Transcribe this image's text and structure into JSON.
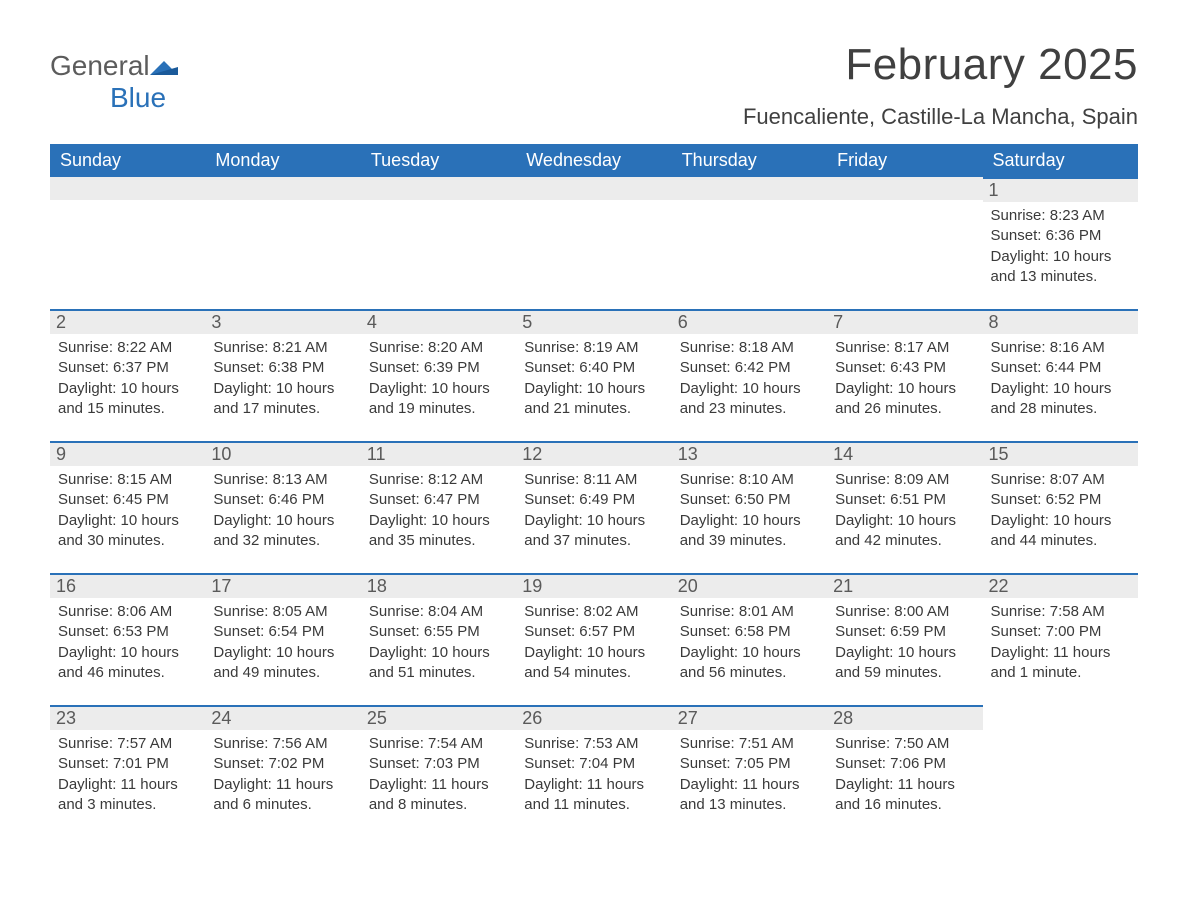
{
  "logo": {
    "text1": "General",
    "text2": "Blue"
  },
  "title": "February 2025",
  "location": "Fuencaliente, Castille-La Mancha, Spain",
  "colors": {
    "header_bg": "#2a71b8",
    "header_text": "#ffffff",
    "daybar_bg": "#ececec",
    "daybar_border": "#2a71b8",
    "body_text": "#3a3a3a",
    "logo_gray": "#5c5c5c",
    "logo_blue": "#2a71b8"
  },
  "weekdays": [
    "Sunday",
    "Monday",
    "Tuesday",
    "Wednesday",
    "Thursday",
    "Friday",
    "Saturday"
  ],
  "weeks": [
    [
      {
        "day": "",
        "sunrise": "",
        "sunset": "",
        "daylight": ""
      },
      {
        "day": "",
        "sunrise": "",
        "sunset": "",
        "daylight": ""
      },
      {
        "day": "",
        "sunrise": "",
        "sunset": "",
        "daylight": ""
      },
      {
        "day": "",
        "sunrise": "",
        "sunset": "",
        "daylight": ""
      },
      {
        "day": "",
        "sunrise": "",
        "sunset": "",
        "daylight": ""
      },
      {
        "day": "",
        "sunrise": "",
        "sunset": "",
        "daylight": ""
      },
      {
        "day": "1",
        "sunrise": "Sunrise: 8:23 AM",
        "sunset": "Sunset: 6:36 PM",
        "daylight": "Daylight: 10 hours and 13 minutes."
      }
    ],
    [
      {
        "day": "2",
        "sunrise": "Sunrise: 8:22 AM",
        "sunset": "Sunset: 6:37 PM",
        "daylight": "Daylight: 10 hours and 15 minutes."
      },
      {
        "day": "3",
        "sunrise": "Sunrise: 8:21 AM",
        "sunset": "Sunset: 6:38 PM",
        "daylight": "Daylight: 10 hours and 17 minutes."
      },
      {
        "day": "4",
        "sunrise": "Sunrise: 8:20 AM",
        "sunset": "Sunset: 6:39 PM",
        "daylight": "Daylight: 10 hours and 19 minutes."
      },
      {
        "day": "5",
        "sunrise": "Sunrise: 8:19 AM",
        "sunset": "Sunset: 6:40 PM",
        "daylight": "Daylight: 10 hours and 21 minutes."
      },
      {
        "day": "6",
        "sunrise": "Sunrise: 8:18 AM",
        "sunset": "Sunset: 6:42 PM",
        "daylight": "Daylight: 10 hours and 23 minutes."
      },
      {
        "day": "7",
        "sunrise": "Sunrise: 8:17 AM",
        "sunset": "Sunset: 6:43 PM",
        "daylight": "Daylight: 10 hours and 26 minutes."
      },
      {
        "day": "8",
        "sunrise": "Sunrise: 8:16 AM",
        "sunset": "Sunset: 6:44 PM",
        "daylight": "Daylight: 10 hours and 28 minutes."
      }
    ],
    [
      {
        "day": "9",
        "sunrise": "Sunrise: 8:15 AM",
        "sunset": "Sunset: 6:45 PM",
        "daylight": "Daylight: 10 hours and 30 minutes."
      },
      {
        "day": "10",
        "sunrise": "Sunrise: 8:13 AM",
        "sunset": "Sunset: 6:46 PM",
        "daylight": "Daylight: 10 hours and 32 minutes."
      },
      {
        "day": "11",
        "sunrise": "Sunrise: 8:12 AM",
        "sunset": "Sunset: 6:47 PM",
        "daylight": "Daylight: 10 hours and 35 minutes."
      },
      {
        "day": "12",
        "sunrise": "Sunrise: 8:11 AM",
        "sunset": "Sunset: 6:49 PM",
        "daylight": "Daylight: 10 hours and 37 minutes."
      },
      {
        "day": "13",
        "sunrise": "Sunrise: 8:10 AM",
        "sunset": "Sunset: 6:50 PM",
        "daylight": "Daylight: 10 hours and 39 minutes."
      },
      {
        "day": "14",
        "sunrise": "Sunrise: 8:09 AM",
        "sunset": "Sunset: 6:51 PM",
        "daylight": "Daylight: 10 hours and 42 minutes."
      },
      {
        "day": "15",
        "sunrise": "Sunrise: 8:07 AM",
        "sunset": "Sunset: 6:52 PM",
        "daylight": "Daylight: 10 hours and 44 minutes."
      }
    ],
    [
      {
        "day": "16",
        "sunrise": "Sunrise: 8:06 AM",
        "sunset": "Sunset: 6:53 PM",
        "daylight": "Daylight: 10 hours and 46 minutes."
      },
      {
        "day": "17",
        "sunrise": "Sunrise: 8:05 AM",
        "sunset": "Sunset: 6:54 PM",
        "daylight": "Daylight: 10 hours and 49 minutes."
      },
      {
        "day": "18",
        "sunrise": "Sunrise: 8:04 AM",
        "sunset": "Sunset: 6:55 PM",
        "daylight": "Daylight: 10 hours and 51 minutes."
      },
      {
        "day": "19",
        "sunrise": "Sunrise: 8:02 AM",
        "sunset": "Sunset: 6:57 PM",
        "daylight": "Daylight: 10 hours and 54 minutes."
      },
      {
        "day": "20",
        "sunrise": "Sunrise: 8:01 AM",
        "sunset": "Sunset: 6:58 PM",
        "daylight": "Daylight: 10 hours and 56 minutes."
      },
      {
        "day": "21",
        "sunrise": "Sunrise: 8:00 AM",
        "sunset": "Sunset: 6:59 PM",
        "daylight": "Daylight: 10 hours and 59 minutes."
      },
      {
        "day": "22",
        "sunrise": "Sunrise: 7:58 AM",
        "sunset": "Sunset: 7:00 PM",
        "daylight": "Daylight: 11 hours and 1 minute."
      }
    ],
    [
      {
        "day": "23",
        "sunrise": "Sunrise: 7:57 AM",
        "sunset": "Sunset: 7:01 PM",
        "daylight": "Daylight: 11 hours and 3 minutes."
      },
      {
        "day": "24",
        "sunrise": "Sunrise: 7:56 AM",
        "sunset": "Sunset: 7:02 PM",
        "daylight": "Daylight: 11 hours and 6 minutes."
      },
      {
        "day": "25",
        "sunrise": "Sunrise: 7:54 AM",
        "sunset": "Sunset: 7:03 PM",
        "daylight": "Daylight: 11 hours and 8 minutes."
      },
      {
        "day": "26",
        "sunrise": "Sunrise: 7:53 AM",
        "sunset": "Sunset: 7:04 PM",
        "daylight": "Daylight: 11 hours and 11 minutes."
      },
      {
        "day": "27",
        "sunrise": "Sunrise: 7:51 AM",
        "sunset": "Sunset: 7:05 PM",
        "daylight": "Daylight: 11 hours and 13 minutes."
      },
      {
        "day": "28",
        "sunrise": "Sunrise: 7:50 AM",
        "sunset": "Sunset: 7:06 PM",
        "daylight": "Daylight: 11 hours and 16 minutes."
      },
      {
        "day": "",
        "sunrise": "",
        "sunset": "",
        "daylight": ""
      }
    ]
  ]
}
